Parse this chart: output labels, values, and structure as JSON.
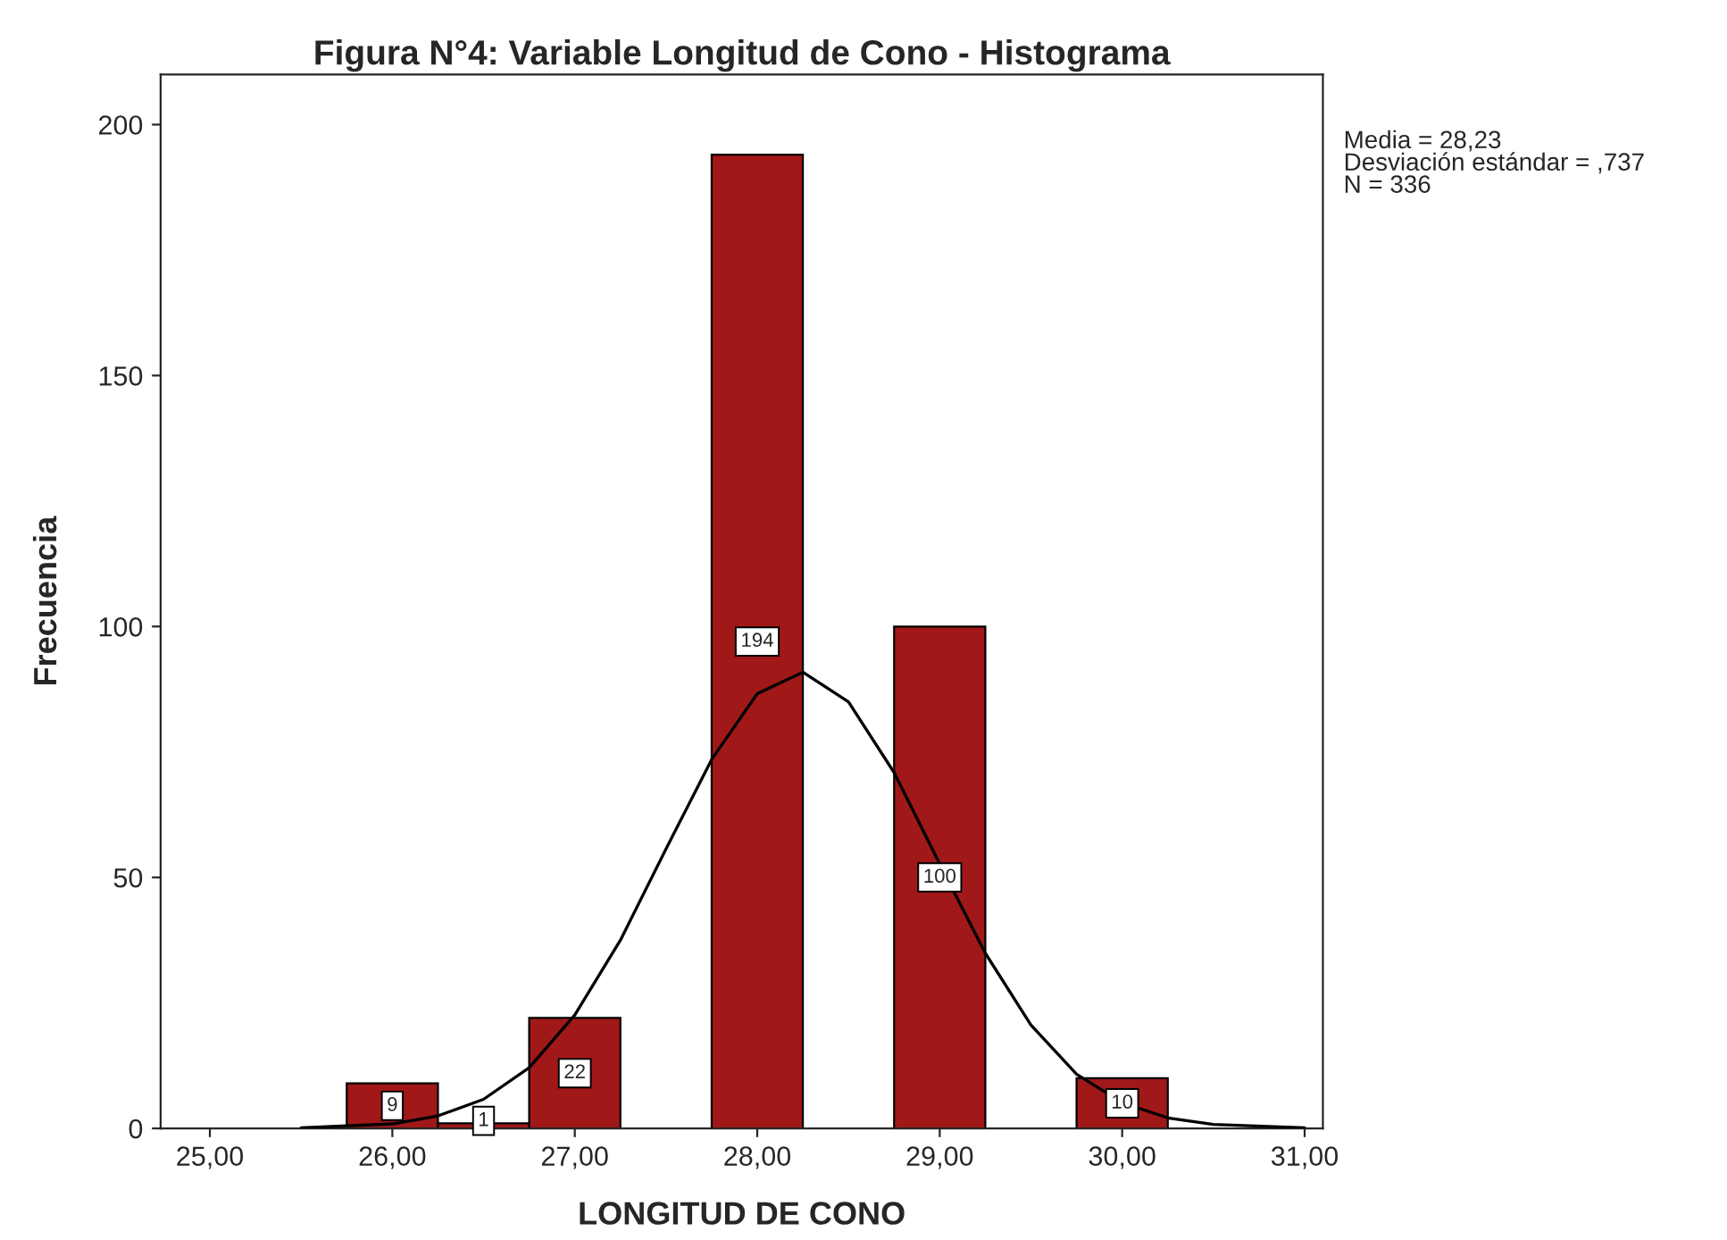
{
  "chart_data": {
    "type": "histogram",
    "title": "Figura N°4: Variable Longitud de Cono - Histograma",
    "xlabel": "LONGITUD DE CONO",
    "ylabel": "Frecuencia",
    "bins": [
      25.75,
      26.25,
      26.75,
      27.25,
      27.75,
      28.25,
      28.75,
      29.25,
      29.75,
      30.25
    ],
    "values": [
      9,
      1,
      22,
      0,
      194,
      0,
      100,
      0,
      10
    ],
    "value_labels": [
      "9",
      "1",
      "22",
      null,
      "194",
      null,
      "100",
      null,
      "10"
    ],
    "color": "#a01818",
    "series": [
      {
        "type": "line",
        "color": "#000000",
        "x": [
          25.5,
          26,
          26.25,
          26.5,
          26.75,
          27,
          27.25,
          27.5,
          27.75,
          28,
          28.25,
          28.5,
          28.75,
          29,
          29.25,
          29.5,
          29.75,
          30,
          30.25,
          30.5,
          31
        ],
        "values": [
          0.1,
          0.9,
          2.5,
          5.8,
          12.1,
          22.6,
          37.5,
          55.7,
          73.5,
          86.6,
          90.9,
          85.0,
          70.9,
          52.7,
          34.9,
          20.6,
          10.8,
          5.1,
          2.1,
          0.8,
          0.1
        ]
      }
    ],
    "xlim": [
      24.73,
      31.1
    ],
    "ylim": [
      0,
      210
    ],
    "xticks": [
      {
        "value": 25,
        "label": "25,00"
      },
      {
        "value": 26,
        "label": "26,00"
      },
      {
        "value": 27,
        "label": "27,00"
      },
      {
        "value": 28,
        "label": "28,00"
      },
      {
        "value": 29,
        "label": "29,00"
      },
      {
        "value": 30,
        "label": "30,00"
      },
      {
        "value": 31,
        "label": "31,00"
      }
    ],
    "yticks": [
      0,
      50,
      100,
      150,
      200
    ],
    "annotations": [
      "Media = 28,23\nDesviación estándar = ,737\nN = 336"
    ],
    "grid": false
  }
}
